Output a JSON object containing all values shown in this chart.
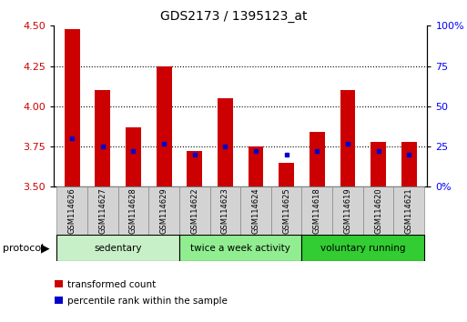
{
  "title": "GDS2173 / 1395123_at",
  "samples": [
    "GSM114626",
    "GSM114627",
    "GSM114628",
    "GSM114629",
    "GSM114622",
    "GSM114623",
    "GSM114624",
    "GSM114625",
    "GSM114618",
    "GSM114619",
    "GSM114620",
    "GSM114621"
  ],
  "red_values": [
    4.48,
    4.1,
    3.87,
    4.25,
    3.72,
    4.05,
    3.75,
    3.65,
    3.84,
    4.1,
    3.78,
    3.78
  ],
  "blue_values": [
    3.8,
    3.75,
    3.72,
    3.77,
    3.7,
    3.75,
    3.72,
    3.7,
    3.72,
    3.77,
    3.72,
    3.7
  ],
  "ymin": 3.5,
  "ymax": 4.5,
  "yticks": [
    3.5,
    3.75,
    4.0,
    4.25,
    4.5
  ],
  "right_yticks": [
    0,
    25,
    50,
    75,
    100
  ],
  "groups": [
    {
      "label": "sedentary",
      "start": 0,
      "end": 4,
      "color": "#c8f0c8"
    },
    {
      "label": "twice a week activity",
      "start": 4,
      "end": 8,
      "color": "#90ee90"
    },
    {
      "label": "voluntary running",
      "start": 8,
      "end": 12,
      "color": "#32cd32"
    }
  ],
  "red_color": "#cc0000",
  "blue_color": "#0000cc",
  "bar_width": 0.5,
  "bg_color": "#ffffff",
  "label_box_color": "#d3d3d3",
  "label_box_edge": "#888888",
  "protocol_text": "protocol",
  "legend_items": [
    {
      "color": "#cc0000",
      "label": "transformed count"
    },
    {
      "color": "#0000cc",
      "label": "percentile rank within the sample"
    }
  ]
}
